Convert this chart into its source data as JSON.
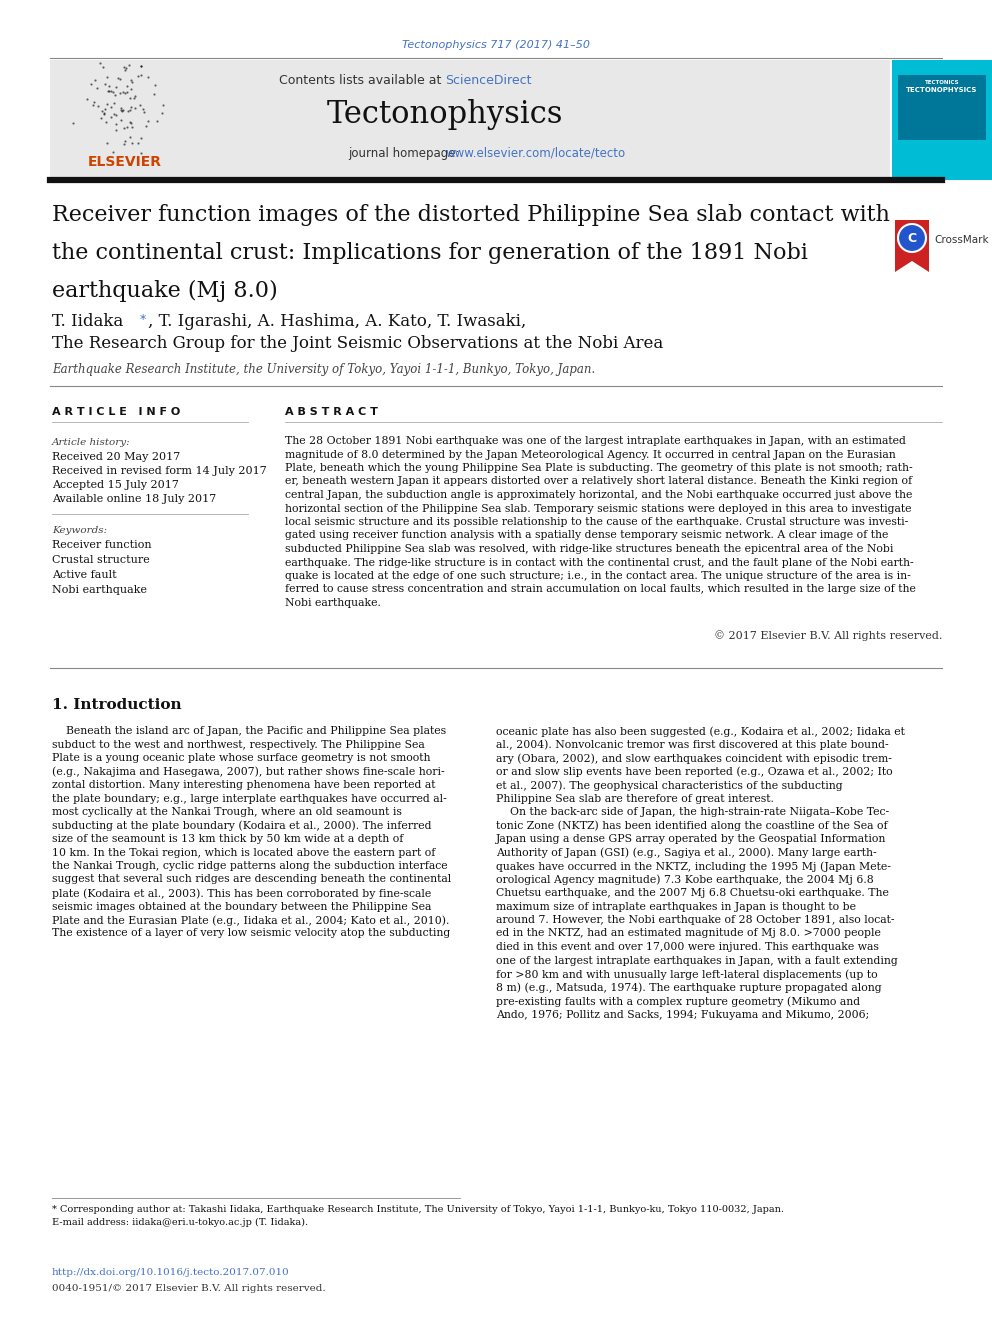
{
  "page_bg": "#ffffff",
  "journal_ref": "Tectonophysics 717 (2017) 41–50",
  "journal_ref_color": "#4472c4",
  "header_bg": "#e8e8e8",
  "header_text": "Contents lists available at ",
  "sciencedirect_text": "ScienceDirect",
  "sciencedirect_color": "#4472c4",
  "journal_name": "Tectonophysics",
  "journal_homepage_text": "journal homepage: ",
  "journal_url": "www.elsevier.com/locate/tecto",
  "journal_url_color": "#4472c4",
  "sidebar_color": "#00bcd4",
  "title_line1": "Receiver function images of the distorted Philippine Sea slab contact with",
  "title_line2": "the continental crust: Implications for generation of the 1891 Nobi",
  "title_line3": "earthquake (Mj 8.0)",
  "authors": "T. Iidaka *, T. Igarashi, A. Hashima, A. Kato, T. Iwasaki,",
  "group": "The Research Group for the Joint Seismic Observations at the Nobi Area",
  "affiliation": "Earthquake Research Institute, the University of Tokyo, Yayoi 1-1-1, Bunkyo, Tokyo, Japan.",
  "article_info_header": "A R T I C L E   I N F O",
  "abstract_header": "A B S T R A C T",
  "article_history_label": "Article history:",
  "received": "Received 20 May 2017",
  "received_revised": "Received in revised form 14 July 2017",
  "accepted": "Accepted 15 July 2017",
  "available": "Available online 18 July 2017",
  "keywords_label": "Keywords:",
  "keywords": [
    "Receiver function",
    "Crustal structure",
    "Active fault",
    "Nobi earthquake"
  ],
  "abstract_lines": [
    "The 28 October 1891 Nobi earthquake was one of the largest intraplate earthquakes in Japan, with an estimated",
    "magnitude of 8.0 determined by the Japan Meteorological Agency. It occurred in central Japan on the Eurasian",
    "Plate, beneath which the young Philippine Sea Plate is subducting. The geometry of this plate is not smooth; rath-",
    "er, beneath western Japan it appears distorted over a relatively short lateral distance. Beneath the Kinki region of",
    "central Japan, the subduction angle is approximately horizontal, and the Nobi earthquake occurred just above the",
    "horizontal section of the Philippine Sea slab. Temporary seismic stations were deployed in this area to investigate",
    "local seismic structure and its possible relationship to the cause of the earthquake. Crustal structure was investi-",
    "gated using receiver function analysis with a spatially dense temporary seismic network. A clear image of the",
    "subducted Philippine Sea slab was resolved, with ridge-like structures beneath the epicentral area of the Nobi",
    "earthquake. The ridge-like structure is in contact with the continental crust, and the fault plane of the Nobi earth-",
    "quake is located at the edge of one such structure; i.e., in the contact area. The unique structure of the area is in-",
    "ferred to cause stress concentration and strain accumulation on local faults, which resulted in the large size of the",
    "Nobi earthquake."
  ],
  "copyright": "© 2017 Elsevier B.V. All rights reserved.",
  "intro_header": "1. Introduction",
  "col1_lines": [
    "    Beneath the island arc of Japan, the Pacific and Philippine Sea plates",
    "subduct to the west and northwest, respectively. The Philippine Sea",
    "Plate is a young oceanic plate whose surface geometry is not smooth",
    "(e.g., Nakajima and Hasegawa, 2007), but rather shows fine-scale hori-",
    "zontal distortion. Many interesting phenomena have been reported at",
    "the plate boundary; e.g., large interplate earthquakes have occurred al-",
    "most cyclically at the Nankai Trough, where an old seamount is",
    "subducting at the plate boundary (Kodaira et al., 2000). The inferred",
    "size of the seamount is 13 km thick by 50 km wide at a depth of",
    "10 km. In the Tokai region, which is located above the eastern part of",
    "the Nankai Trough, cyclic ridge patterns along the subduction interface",
    "suggest that several such ridges are descending beneath the continental",
    "plate (Kodaira et al., 2003). This has been corroborated by fine-scale",
    "seismic images obtained at the boundary between the Philippine Sea",
    "Plate and the Eurasian Plate (e.g., Iidaka et al., 2004; Kato et al., 2010).",
    "The existence of a layer of very low seismic velocity atop the subducting"
  ],
  "col2_lines": [
    "oceanic plate has also been suggested (e.g., Kodaira et al., 2002; Iidaka et",
    "al., 2004). Nonvolcanic tremor was first discovered at this plate bound-",
    "ary (Obara, 2002), and slow earthquakes coincident with episodic trem-",
    "or and slow slip events have been reported (e.g., Ozawa et al., 2002; Ito",
    "et al., 2007). The geophysical characteristics of the subducting",
    "Philippine Sea slab are therefore of great interest.",
    "    On the back-arc side of Japan, the high-strain-rate Niigata–Kobe Tec-",
    "tonic Zone (NKTZ) has been identified along the coastline of the Sea of",
    "Japan using a dense GPS array operated by the Geospatial Information",
    "Authority of Japan (GSI) (e.g., Sagiya et al., 2000). Many large earth-",
    "quakes have occurred in the NKTZ, including the 1995 Mj (Japan Mete-",
    "orological Agency magnitude) 7.3 Kobe earthquake, the 2004 Mj 6.8",
    "Chuetsu earthquake, and the 2007 Mj 6.8 Chuetsu-oki earthquake. The",
    "maximum size of intraplate earthquakes in Japan is thought to be",
    "around 7. However, the Nobi earthquake of 28 October 1891, also locat-",
    "ed in the NKTZ, had an estimated magnitude of Mj 8.0. >7000 people",
    "died in this event and over 17,000 were injured. This earthquake was",
    "one of the largest intraplate earthquakes in Japan, with a fault extending",
    "for >80 km and with unusually large left-lateral displacements (up to",
    "8 m) (e.g., Matsuda, 1974). The earthquake rupture propagated along",
    "pre-existing faults with a complex rupture geometry (Mikumo and",
    "Ando, 1976; Pollitz and Sacks, 1994; Fukuyama and Mikumo, 2006;"
  ],
  "footnote_lines": [
    "* Corresponding author at: Takashi Iidaka, Earthquake Research Institute, The University of Tokyo, Yayoi 1-1-1, Bunkyo-ku, Tokyo 110-0032, Japan.",
    "E-mail address: iidaka@eri.u-tokyo.ac.jp (T. Iidaka)."
  ],
  "doi_text": "http://dx.doi.org/10.1016/j.tecto.2017.07.010",
  "issn_text": "0040-1951/© 2017 Elsevier B.V. All rights reserved."
}
